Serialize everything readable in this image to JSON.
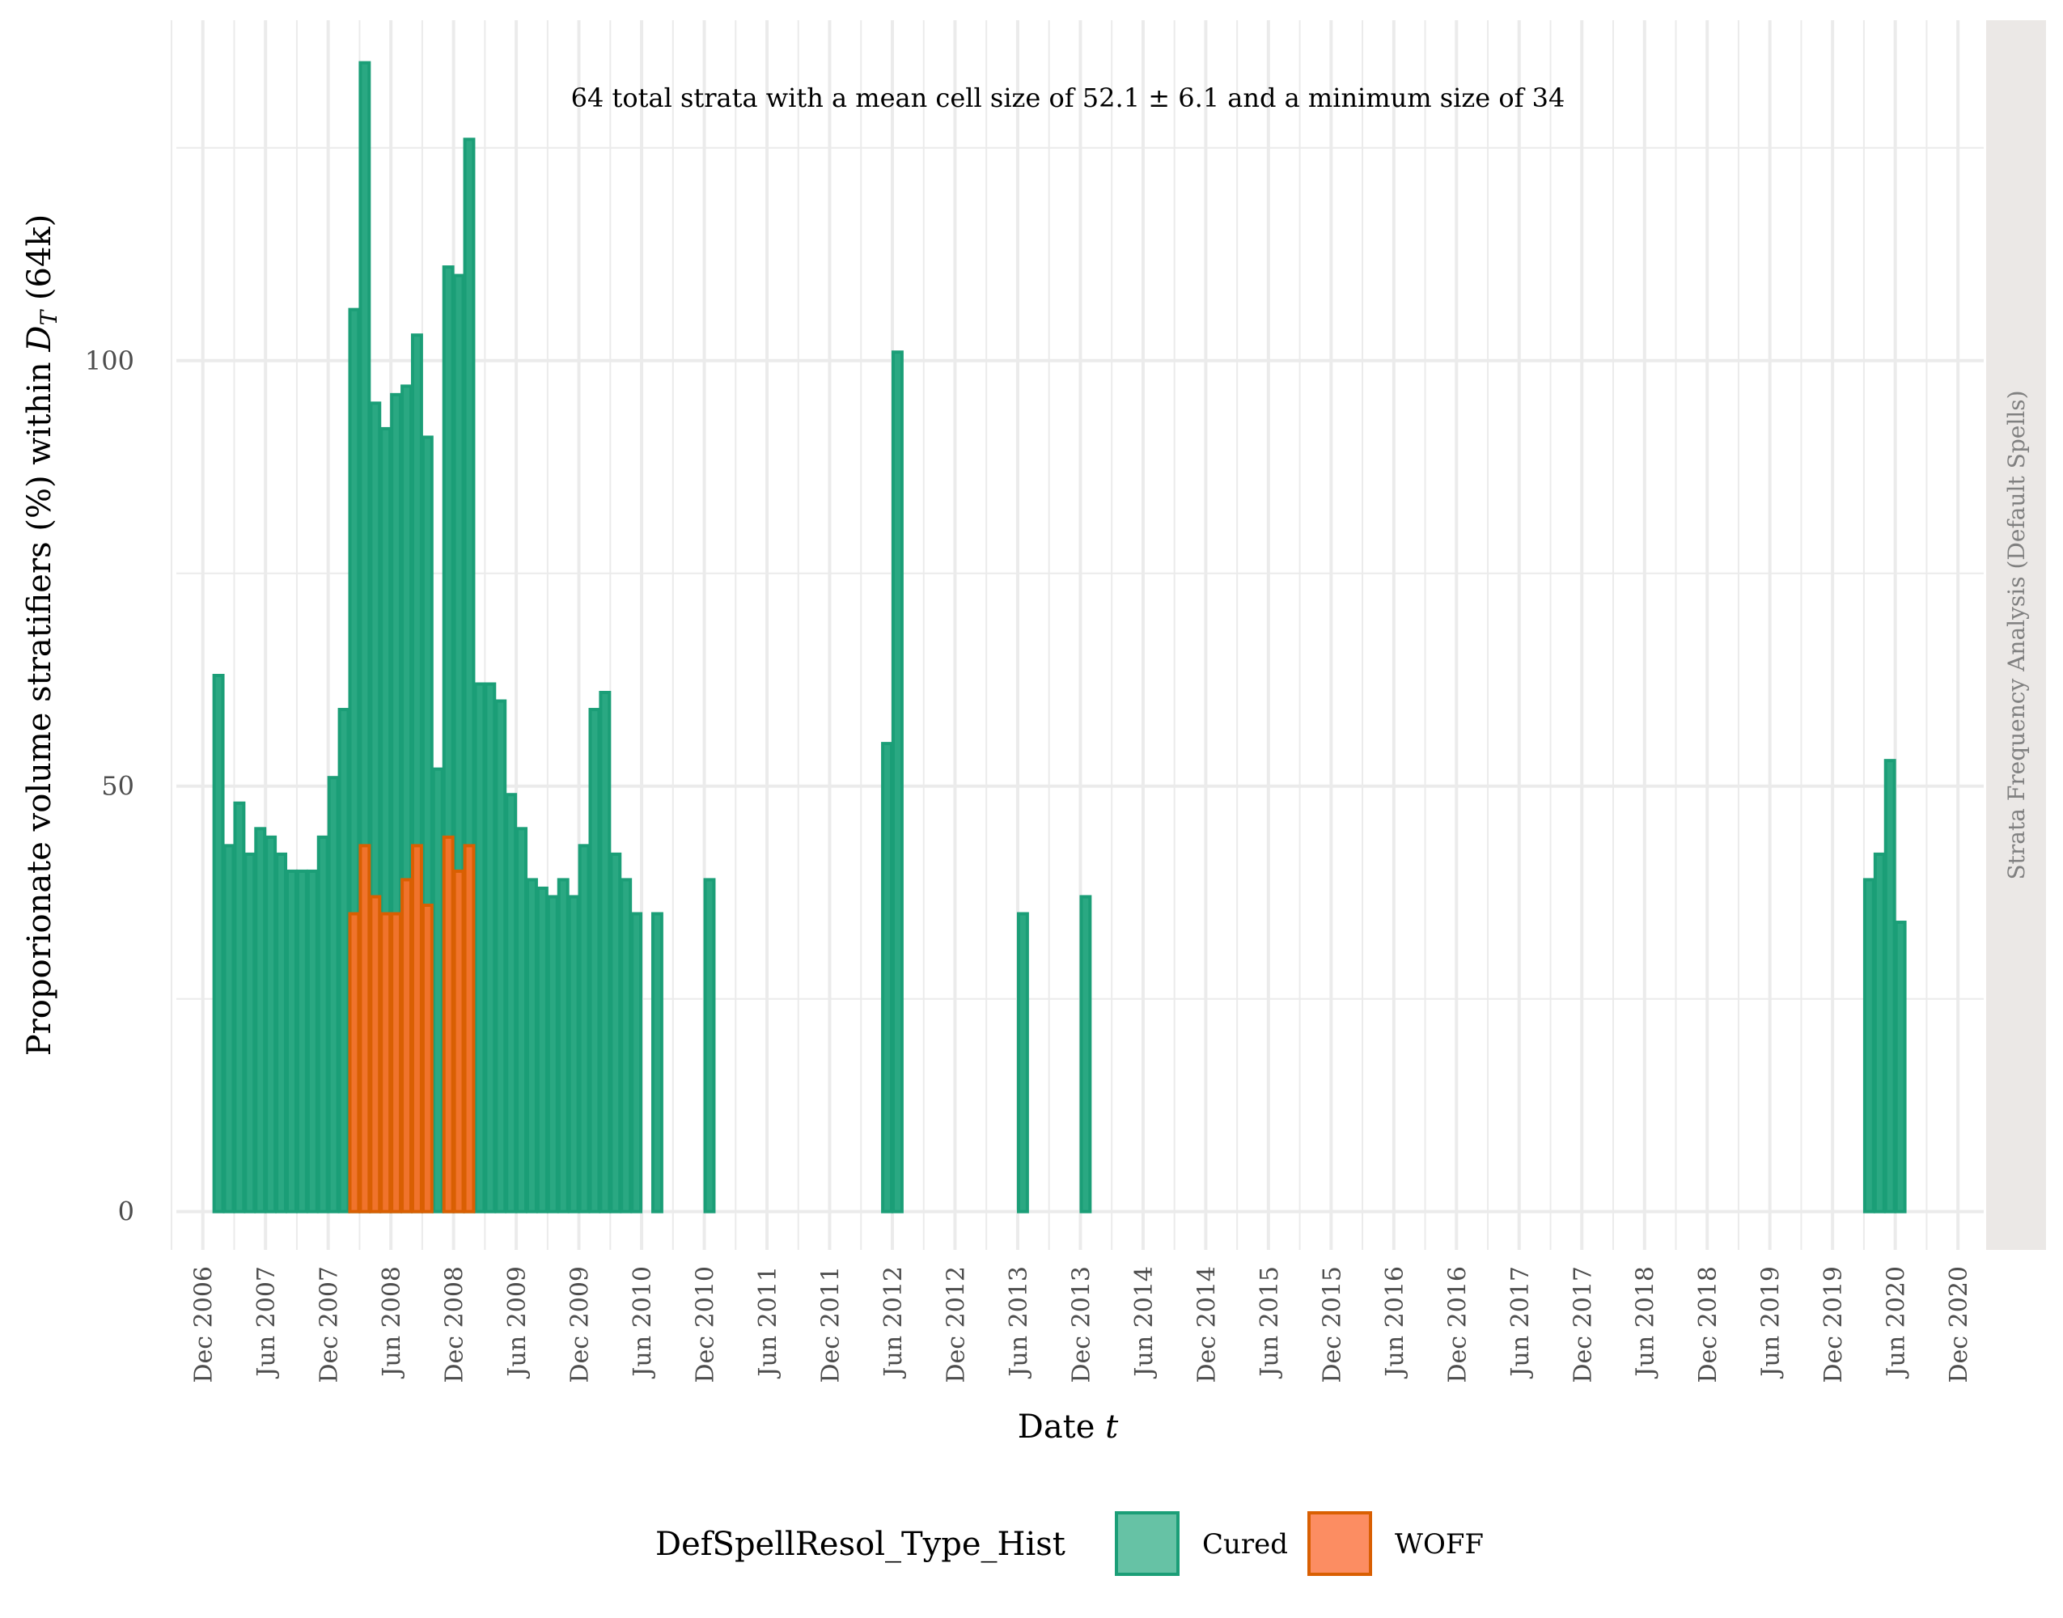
{
  "chart_data": {
    "type": "bar",
    "subtitle": "64 total strata with a mean cell size of 52.1 ± 6.1 and a minimum size of 34",
    "xlabel": "Date t",
    "xlabel_main": "Date ",
    "xlabel_symbol": "t",
    "ylabel": "Proporionate volume stratifiers (%) within D_T (64k)",
    "ylabel_pre": "Proporionate volume stratifiers (%) within ",
    "ylabel_symbol": "D",
    "ylabel_sub": "T",
    "ylabel_post": " (64k)",
    "strip_label": "Strata Frequency Analysis (Default Spells)",
    "y_ticks": [
      0,
      50,
      100
    ],
    "ylim": [
      -4.5,
      140
    ],
    "xlim": [
      "2006-09-15",
      "2021-02-15"
    ],
    "x_ticks": [
      "Dec 2006",
      "Jun 2007",
      "Dec 2007",
      "Jun 2008",
      "Dec 2008",
      "Jun 2009",
      "Dec 2009",
      "Jun 2010",
      "Dec 2010",
      "Jun 2011",
      "Dec 2011",
      "Jun 2012",
      "Dec 2012",
      "Jun 2013",
      "Dec 2013",
      "Jun 2014",
      "Dec 2014",
      "Jun 2015",
      "Dec 2015",
      "Jun 2016",
      "Dec 2016",
      "Jun 2017",
      "Dec 2017",
      "Jun 2018",
      "Dec 2018",
      "Jun 2019",
      "Dec 2019",
      "Jun 2020",
      "Dec 2020"
    ],
    "grid": true,
    "legend": {
      "title": "DefSpellResol_Type_Hist",
      "position": "bottom",
      "entries": [
        {
          "label": "Cured",
          "fill": "#66c2a5",
          "stroke": "#1b9e77"
        },
        {
          "label": "WOFF",
          "fill": "#fc8d62",
          "stroke": "#d95f02"
        }
      ]
    },
    "series": [
      {
        "name": "Cured",
        "fill": "#2aa882",
        "stroke": "#1b9e77",
        "points": [
          {
            "x": "2007-01",
            "y": 63
          },
          {
            "x": "2007-02",
            "y": 43
          },
          {
            "x": "2007-03",
            "y": 48
          },
          {
            "x": "2007-04",
            "y": 42
          },
          {
            "x": "2007-05",
            "y": 45
          },
          {
            "x": "2007-06",
            "y": 44
          },
          {
            "x": "2007-07",
            "y": 42
          },
          {
            "x": "2007-08",
            "y": 40
          },
          {
            "x": "2007-09",
            "y": 40
          },
          {
            "x": "2007-10",
            "y": 40
          },
          {
            "x": "2007-11",
            "y": 44
          },
          {
            "x": "2007-12",
            "y": 51
          },
          {
            "x": "2008-01",
            "y": 59
          },
          {
            "x": "2008-02",
            "y": 106
          },
          {
            "x": "2008-03",
            "y": 135
          },
          {
            "x": "2008-04",
            "y": 95
          },
          {
            "x": "2008-05",
            "y": 92
          },
          {
            "x": "2008-06",
            "y": 96
          },
          {
            "x": "2008-07",
            "y": 97
          },
          {
            "x": "2008-08",
            "y": 103
          },
          {
            "x": "2008-09",
            "y": 91
          },
          {
            "x": "2008-10",
            "y": 52
          },
          {
            "x": "2008-11",
            "y": 111
          },
          {
            "x": "2008-12",
            "y": 110
          },
          {
            "x": "2009-01",
            "y": 126
          },
          {
            "x": "2009-02",
            "y": 62
          },
          {
            "x": "2009-03",
            "y": 62
          },
          {
            "x": "2009-04",
            "y": 60
          },
          {
            "x": "2009-05",
            "y": 49
          },
          {
            "x": "2009-06",
            "y": 45
          },
          {
            "x": "2009-07",
            "y": 39
          },
          {
            "x": "2009-08",
            "y": 38
          },
          {
            "x": "2009-09",
            "y": 37
          },
          {
            "x": "2009-10",
            "y": 39
          },
          {
            "x": "2009-11",
            "y": 37
          },
          {
            "x": "2009-12",
            "y": 43
          },
          {
            "x": "2010-01",
            "y": 59
          },
          {
            "x": "2010-02",
            "y": 61
          },
          {
            "x": "2010-03",
            "y": 42
          },
          {
            "x": "2010-04",
            "y": 39
          },
          {
            "x": "2010-05",
            "y": 35
          },
          {
            "x": "2010-07",
            "y": 35
          },
          {
            "x": "2010-12",
            "y": 39
          },
          {
            "x": "2012-05",
            "y": 55
          },
          {
            "x": "2012-06",
            "y": 101
          },
          {
            "x": "2013-06",
            "y": 35
          },
          {
            "x": "2013-12",
            "y": 37
          },
          {
            "x": "2020-03",
            "y": 39
          },
          {
            "x": "2020-04",
            "y": 42
          },
          {
            "x": "2020-05",
            "y": 53
          },
          {
            "x": "2020-06",
            "y": 34
          }
        ]
      },
      {
        "name": "WOFF",
        "fill": "#f0732c",
        "stroke": "#d95f02",
        "points": [
          {
            "x": "2008-02",
            "y": 35
          },
          {
            "x": "2008-03",
            "y": 43
          },
          {
            "x": "2008-04",
            "y": 37
          },
          {
            "x": "2008-05",
            "y": 35
          },
          {
            "x": "2008-06",
            "y": 35
          },
          {
            "x": "2008-07",
            "y": 39
          },
          {
            "x": "2008-08",
            "y": 43
          },
          {
            "x": "2008-09",
            "y": 36
          },
          {
            "x": "2008-11",
            "y": 44
          },
          {
            "x": "2008-12",
            "y": 40
          },
          {
            "x": "2009-01",
            "y": 43
          }
        ]
      }
    ]
  }
}
